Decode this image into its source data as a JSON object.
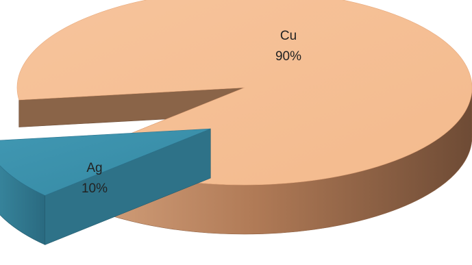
{
  "chart_data": {
    "type": "pie",
    "style": "3d-exploded",
    "legend": "none",
    "slices": [
      {
        "label": "Cu",
        "value": 90,
        "value_label": "90%",
        "color": "#F6BF93",
        "side_color": "#B9825E",
        "exploded": false
      },
      {
        "label": "Ag",
        "value": 10,
        "value_label": "10%",
        "color": "#3B93AE",
        "side_color": "#2C6F84",
        "exploded": true
      }
    ]
  }
}
